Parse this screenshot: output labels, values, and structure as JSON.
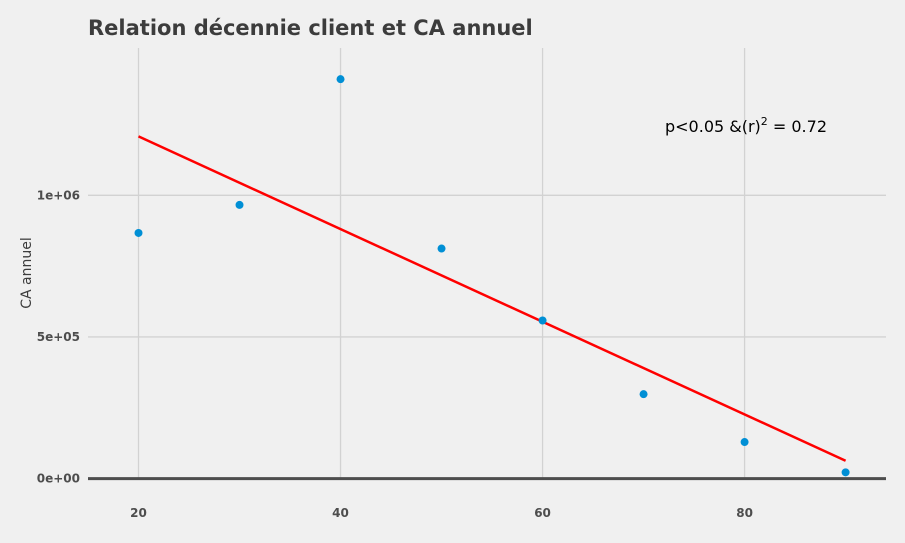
{
  "chart_data": {
    "type": "scatter",
    "title": "Relation décennie client et CA annuel",
    "xlabel": "",
    "ylabel": "CA annuel",
    "x_ticks": [
      20,
      40,
      60,
      80
    ],
    "y_ticks": [
      {
        "value": 0,
        "label": "0e+00"
      },
      {
        "value": 500000,
        "label": "5e+05"
      },
      {
        "value": 1000000,
        "label": "1e+06"
      }
    ],
    "xlim": [
      15,
      94
    ],
    "ylim": [
      -5000,
      1520000
    ],
    "points": [
      {
        "x": 20,
        "y": 867000
      },
      {
        "x": 30,
        "y": 966000
      },
      {
        "x": 40,
        "y": 1410000
      },
      {
        "x": 50,
        "y": 812000
      },
      {
        "x": 60,
        "y": 558000
      },
      {
        "x": 70,
        "y": 298000
      },
      {
        "x": 80,
        "y": 129000
      },
      {
        "x": 90,
        "y": 22000
      }
    ],
    "regression": {
      "x": [
        20,
        90
      ],
      "y": [
        1208000,
        63000
      ]
    },
    "annotation": {
      "text": "p<0.05 &(r)",
      "superscript": "2",
      "suffix": " = 0.72",
      "x": 80,
      "y": 1210000
    },
    "colors": {
      "points": "#008fd5",
      "regression": "#ff0000",
      "grid": "#d2d2d2",
      "baseline": "#4d4d4d",
      "background": "#f0f0f0"
    },
    "grid": true,
    "legend": "none"
  }
}
